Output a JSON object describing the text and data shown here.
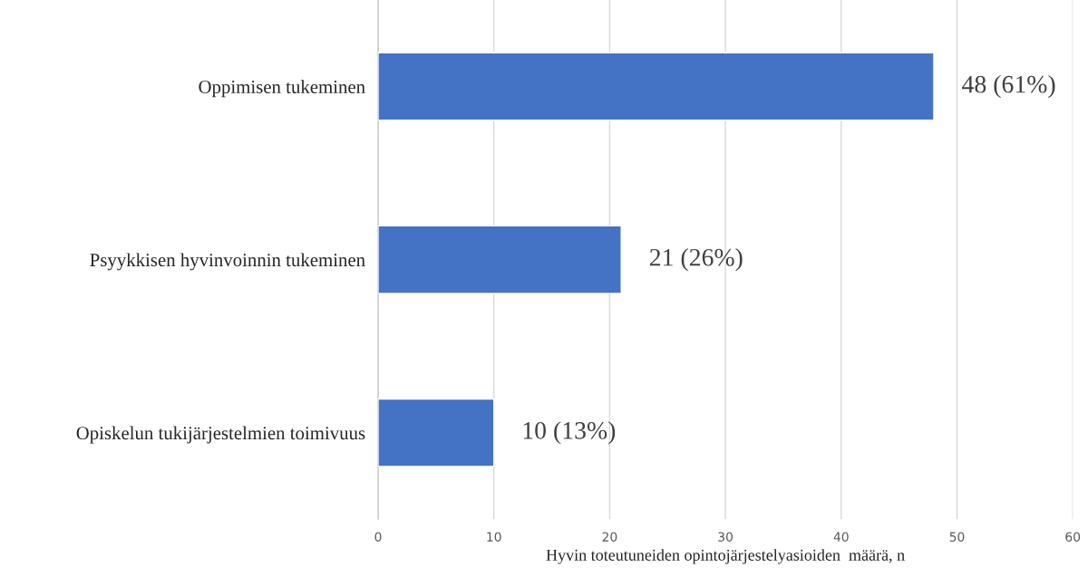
{
  "chart_data": {
    "type": "bar",
    "orientation": "horizontal",
    "categories": [
      "Oppimisen tukeminen",
      "Psyykkisen hyvinvoinnin tukeminen",
      "Opiskelun tukijärjestelmien toimivuus"
    ],
    "values": [
      48,
      21,
      10
    ],
    "value_labels": [
      "48 (61%)",
      "21 (26%)",
      "10 (13%)"
    ],
    "color": "#4472c4",
    "xlabel": "Hyvin toteutuneiden opintojärjestelyasioiden  määrä, n",
    "xlim": [
      0,
      60
    ],
    "xticks": [
      0,
      10,
      20,
      30,
      40,
      50,
      60
    ],
    "grid": "x",
    "legend": false
  }
}
